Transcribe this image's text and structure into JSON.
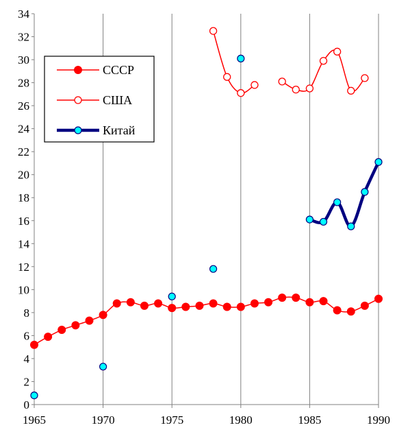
{
  "chart_data": {
    "type": "line",
    "title": "",
    "xlabel": "",
    "ylabel": "",
    "xlim": [
      1965,
      1990
    ],
    "ylim": [
      0,
      34
    ],
    "x_ticks": [
      1965,
      1970,
      1975,
      1980,
      1985,
      1990
    ],
    "y_ticks": [
      0,
      2,
      4,
      6,
      8,
      10,
      12,
      14,
      16,
      18,
      20,
      22,
      24,
      26,
      28,
      30,
      32,
      34
    ],
    "grid": "vertical",
    "legend_position": "upper-left",
    "series": [
      {
        "name": "СССР",
        "color": "#ff0000",
        "marker": "filled-circle",
        "line_width": "thin",
        "segments": [
          [
            [
              1965,
              5.2
            ],
            [
              1966,
              5.9
            ],
            [
              1967,
              6.5
            ],
            [
              1968,
              6.9
            ],
            [
              1969,
              7.3
            ],
            [
              1970,
              7.8
            ],
            [
              1971,
              8.8
            ],
            [
              1972,
              8.9
            ],
            [
              1973,
              8.6
            ],
            [
              1974,
              8.8
            ],
            [
              1975,
              8.4
            ],
            [
              1976,
              8.5
            ],
            [
              1977,
              8.6
            ],
            [
              1978,
              8.8
            ],
            [
              1979,
              8.5
            ],
            [
              1980,
              8.5
            ],
            [
              1981,
              8.8
            ],
            [
              1982,
              8.9
            ],
            [
              1983,
              9.3
            ],
            [
              1984,
              9.3
            ],
            [
              1985,
              8.9
            ],
            [
              1986,
              9.0
            ],
            [
              1987,
              8.2
            ],
            [
              1988,
              8.1
            ],
            [
              1989,
              8.6
            ],
            [
              1990,
              9.2
            ]
          ]
        ]
      },
      {
        "name": "США",
        "color": "#ff0000",
        "marker": "open-circle",
        "line_width": "thin",
        "segments": [
          [
            [
              1978,
              32.5
            ],
            [
              1979,
              28.5
            ],
            [
              1980,
              27.1
            ],
            [
              1981,
              27.8
            ]
          ],
          [
            [
              1983,
              28.1
            ],
            [
              1984,
              27.4
            ],
            [
              1985,
              27.5
            ],
            [
              1986,
              29.9
            ],
            [
              1987,
              30.7
            ],
            [
              1988,
              27.3
            ],
            [
              1989,
              28.4
            ]
          ]
        ]
      },
      {
        "name": "Китай",
        "color": "#000080",
        "marker": "cyan-circle",
        "line_width": "thick",
        "segments": [
          [
            [
              1965,
              0.8
            ]
          ],
          [
            [
              1970,
              3.3
            ]
          ],
          [
            [
              1975,
              9.4
            ]
          ],
          [
            [
              1978,
              11.8
            ]
          ],
          [
            [
              1980,
              30.1
            ]
          ],
          [
            [
              1985,
              16.1
            ],
            [
              1986,
              15.9
            ],
            [
              1987,
              17.6
            ],
            [
              1988,
              15.5
            ],
            [
              1989,
              18.5
            ],
            [
              1990,
              21.1
            ]
          ]
        ]
      }
    ]
  }
}
